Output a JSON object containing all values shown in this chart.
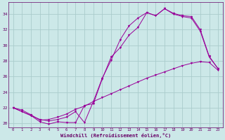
{
  "bg_color": "#cce8e8",
  "line_color": "#990099",
  "grid_color": "#aacccc",
  "xlabel": "Windchill (Refroidissement éolien,°C)",
  "xlabel_color": "#660066",
  "tick_color": "#660066",
  "ylim": [
    19.5,
    35.5
  ],
  "xlim": [
    -0.5,
    23.5
  ],
  "yticks": [
    20,
    22,
    24,
    26,
    28,
    30,
    32,
    34
  ],
  "xticks": [
    0,
    1,
    2,
    3,
    4,
    5,
    6,
    7,
    8,
    9,
    10,
    11,
    12,
    13,
    14,
    15,
    16,
    17,
    18,
    19,
    20,
    21,
    22,
    23
  ],
  "series1_x": [
    0,
    1,
    2,
    3,
    4,
    5,
    6,
    7,
    8,
    9,
    10,
    11,
    12,
    13,
    14,
    15,
    16,
    17,
    18,
    19,
    20,
    21,
    22,
    23
  ],
  "series1_y": [
    22.0,
    21.5,
    21.0,
    20.2,
    19.9,
    20.2,
    20.1,
    20.1,
    22.3,
    22.5,
    25.7,
    28.5,
    29.7,
    31.3,
    32.3,
    34.2,
    33.8,
    34.7,
    34.1,
    33.8,
    33.7,
    32.0,
    28.6,
    27.0
  ],
  "series2_x": [
    0,
    1,
    2,
    3,
    4,
    5,
    6,
    7,
    8,
    9,
    10,
    11,
    12,
    13,
    14,
    15,
    16,
    17,
    18,
    19,
    20,
    21,
    22,
    23
  ],
  "series2_y": [
    22.0,
    21.5,
    21.0,
    20.5,
    20.3,
    20.5,
    20.8,
    21.5,
    20.1,
    22.8,
    25.8,
    28.1,
    30.7,
    32.5,
    33.5,
    34.2,
    33.8,
    34.7,
    34.0,
    33.7,
    33.5,
    31.8,
    28.5,
    27.0
  ],
  "series3_x": [
    0,
    1,
    2,
    3,
    4,
    5,
    6,
    7,
    8,
    9,
    10,
    11,
    12,
    13,
    14,
    15,
    16,
    17,
    18,
    19,
    20,
    21,
    22,
    23
  ],
  "series3_y": [
    22.0,
    21.7,
    21.1,
    20.4,
    20.5,
    20.8,
    21.2,
    21.8,
    22.2,
    22.8,
    23.3,
    23.8,
    24.3,
    24.8,
    25.3,
    25.8,
    26.2,
    26.6,
    27.0,
    27.4,
    27.7,
    27.9,
    27.8,
    26.8
  ]
}
